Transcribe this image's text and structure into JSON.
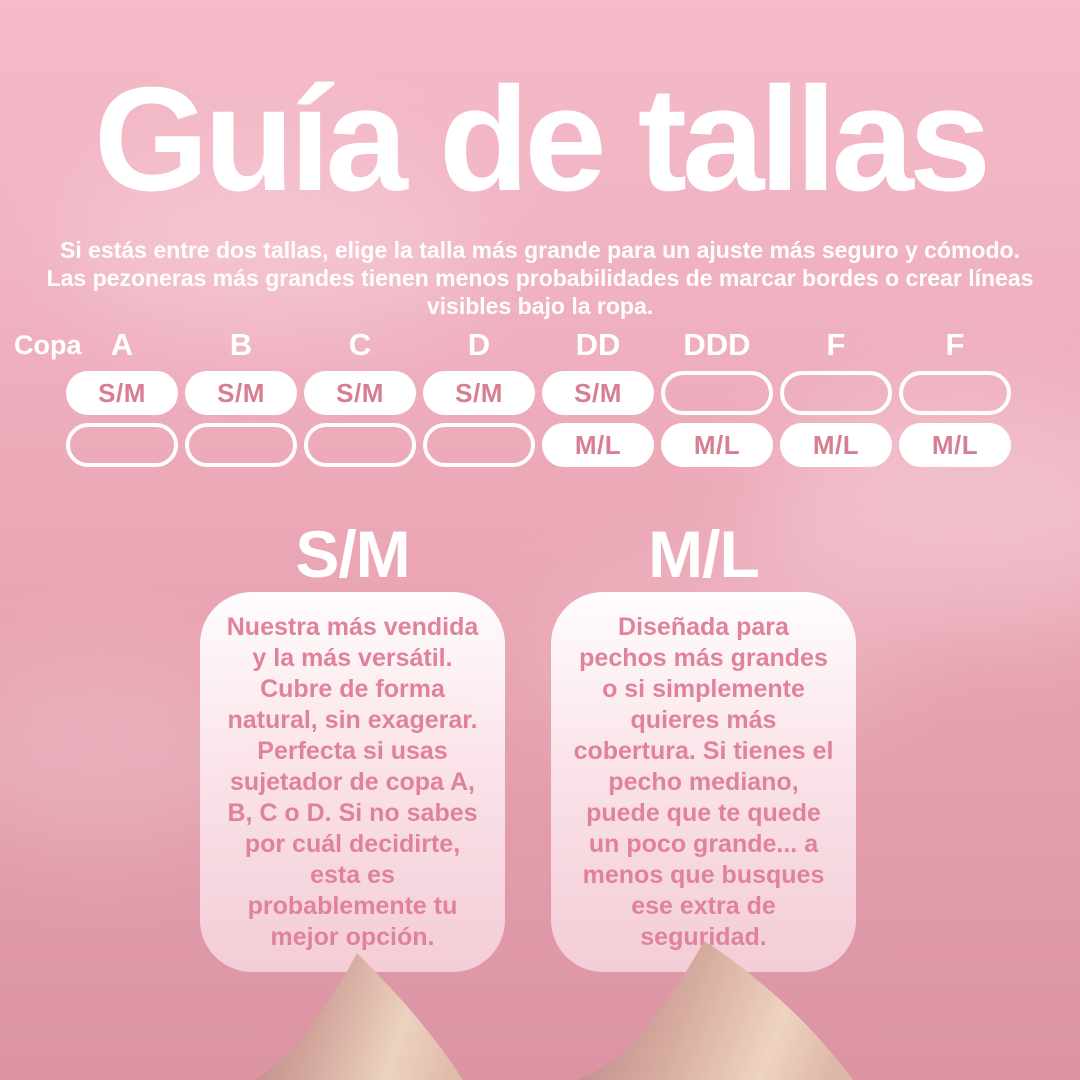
{
  "page": {
    "title": "Guía de tallas",
    "subtitle_lines": [
      "Si estás entre dos tallas, elige la talla más grande para un ajuste más seguro y cómodo.",
      "Las pezoneras más grandes tienen menos probabilidades de marcar bordes o crear líneas",
      "visibles bajo la ropa."
    ]
  },
  "table": {
    "row_label": "Copa",
    "columns": [
      "A",
      "B",
      "C",
      "D",
      "DD",
      "DDD",
      "F",
      "F"
    ],
    "rows": [
      {
        "size": "S/M",
        "cells": [
          "S/M",
          "S/M",
          "S/M",
          "S/M",
          "S/M",
          null,
          null,
          null
        ]
      },
      {
        "size": "M/L",
        "cells": [
          null,
          null,
          null,
          null,
          "M/L",
          "M/L",
          "M/L",
          "M/L"
        ]
      }
    ]
  },
  "cards": [
    {
      "heading": "S/M",
      "body": "Nuestra más vendida y la más versátil. Cubre de forma natural, sin exagerar. Perfecta si usas sujetador de copa A, B, C o D. Si no sabes por cuál decidirte, esta es probablemente tu mejor opción."
    },
    {
      "heading": "M/L",
      "body": "Diseñada para pechos más grandes o si simplemente quieres más cobertura. Si tienes el pecho mediano, puede que te quede un poco grande... a menos que busques ese extra de seguridad."
    }
  ],
  "colors": {
    "background_top": "#f4bbc8",
    "background_bottom": "#dc94a3",
    "text_white": "#ffffff",
    "pill_fill": "#ffffff",
    "pill_text": "#d87e91",
    "card_text": "#e0839a",
    "cone_dark": "#c28c8e",
    "cone_light": "#eed2bf"
  }
}
